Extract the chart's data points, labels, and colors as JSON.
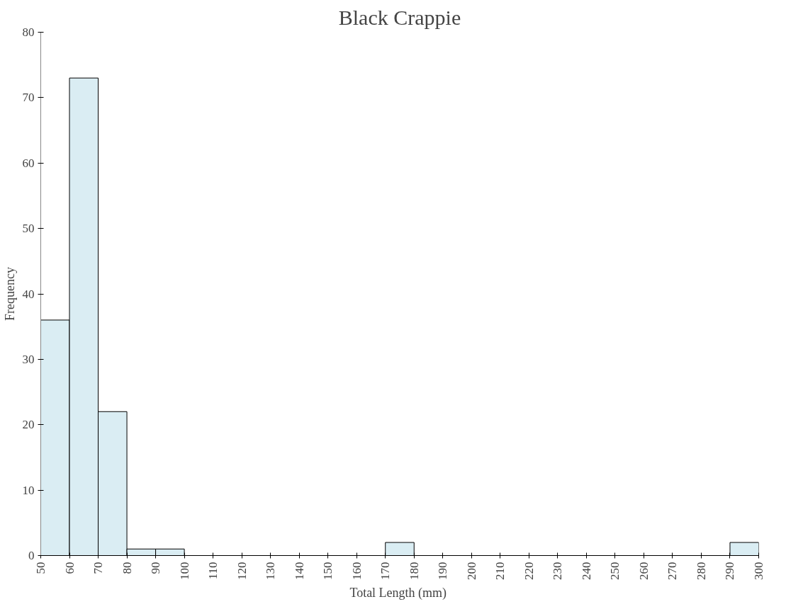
{
  "chart_data": {
    "type": "histogram",
    "title": "Black Crappie",
    "xlabel": "Total Length  (mm)",
    "ylabel": "Frequency",
    "bins": [
      50,
      60,
      70,
      80,
      90,
      100,
      110,
      120,
      130,
      140,
      150,
      160,
      170,
      180,
      190,
      200,
      210,
      220,
      230,
      240,
      250,
      260,
      270,
      280,
      290,
      300
    ],
    "values": [
      36,
      73,
      22,
      1,
      1,
      0,
      0,
      0,
      0,
      0,
      0,
      0,
      2,
      0,
      0,
      0,
      0,
      0,
      0,
      0,
      0,
      0,
      0,
      0,
      2
    ],
    "color": "#daedf3",
    "xlim": [
      50,
      300
    ],
    "xticks": [
      50,
      60,
      70,
      80,
      90,
      100,
      110,
      120,
      130,
      140,
      150,
      160,
      170,
      180,
      190,
      200,
      210,
      220,
      230,
      240,
      250,
      260,
      270,
      280,
      290,
      300
    ],
    "ylim": [
      0,
      80
    ],
    "yticks": [
      0,
      10,
      20,
      30,
      40,
      50,
      60,
      70,
      80
    ],
    "grid": false
  }
}
